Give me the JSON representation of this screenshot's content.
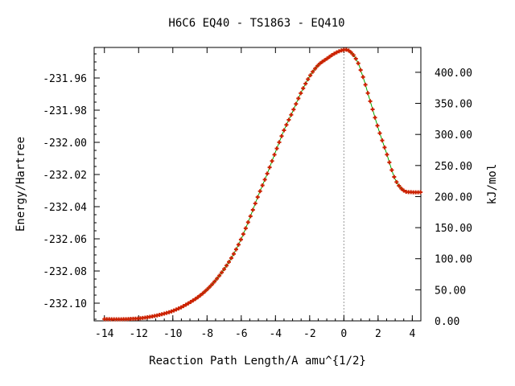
{
  "chart_data": {
    "type": "line",
    "title": "H6C6   EQ40 - TS1863 - EQ410",
    "xlabel": "Reaction Path Length/A amu^{1/2}",
    "ylabel": "Energy/Hartree",
    "y2label": "kJ/mol",
    "xlim": [
      -14.6,
      4.5
    ],
    "ylim": [
      -232.111,
      -231.941
    ],
    "y2lim": [
      0,
      440
    ],
    "x_ticks": [
      -14,
      -12,
      -10,
      -8,
      -6,
      -4,
      -2,
      0,
      2,
      4
    ],
    "y_ticks": [
      -232.1,
      -232.08,
      -232.06,
      -232.04,
      -232.02,
      -232.0,
      -231.98,
      -231.96
    ],
    "y2_ticks": [
      0,
      50,
      100,
      150,
      200,
      250,
      300,
      350,
      400
    ],
    "x_tick_labels": [
      "-14",
      "-12",
      "-10",
      "-8",
      "-6",
      "-4",
      "-2",
      "0",
      "2",
      "4"
    ],
    "y_tick_labels": [
      "-232.10",
      "-232.08",
      "-232.06",
      "-232.04",
      "-232.02",
      "-232.00",
      "-231.98",
      "-231.96"
    ],
    "y2_tick_labels": [
      "0.00",
      "50.00",
      "100.00",
      "150.00",
      "200.00",
      "250.00",
      "300.00",
      "350.00",
      "400.00"
    ],
    "ts_marker_x": 0,
    "grid": false,
    "legend": "none",
    "line_color": "#00aa00",
    "marker_color": "#cc2200",
    "axis_color": "#000000",
    "marker_line_color": "#999999",
    "series": [
      {
        "x": [
          -14.0,
          -13.5,
          -13.0,
          -12.5,
          -12.0,
          -11.5,
          -11.0,
          -10.5,
          -10.0,
          -9.5,
          -9.0,
          -8.5,
          -8.0,
          -7.5,
          -7.0,
          -6.5,
          -6.0,
          -5.5,
          -5.0,
          -4.5,
          -4.0,
          -3.5,
          -3.0,
          -2.5,
          -2.0,
          -1.5,
          -1.0,
          -0.5,
          0.0,
          0.25,
          0.5,
          0.75,
          1.0,
          1.5,
          2.0,
          2.5,
          3.0,
          3.5,
          4.0,
          4.5
        ],
        "y": [
          -232.1099,
          -232.11,
          -232.11,
          -232.1098,
          -232.1095,
          -232.1088,
          -232.1078,
          -232.1065,
          -232.1048,
          -232.1025,
          -232.0995,
          -232.096,
          -232.0915,
          -232.0858,
          -232.0788,
          -232.0705,
          -232.06,
          -232.047,
          -232.033,
          -232.02,
          -232.006,
          -231.9925,
          -231.981,
          -231.969,
          -231.959,
          -231.952,
          -231.948,
          -231.9445,
          -231.9425,
          -231.9428,
          -231.945,
          -231.949,
          -231.956,
          -231.973,
          -231.991,
          -232.007,
          -232.023,
          -232.03,
          -232.031,
          -232.031
        ]
      }
    ]
  }
}
